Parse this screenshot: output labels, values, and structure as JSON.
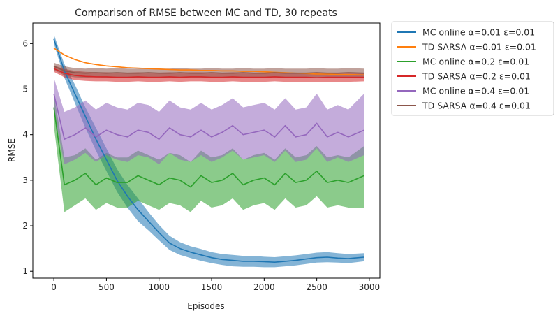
{
  "chart_data": {
    "type": "line",
    "title": "Comparison of RMSE between MC and TD, 30 repeats",
    "xlabel": "Episodes",
    "ylabel": "RMSE",
    "xlim": [
      -200,
      3100
    ],
    "ylim": [
      0.85,
      6.45
    ],
    "x_ticks": [
      0,
      500,
      1000,
      1500,
      2000,
      2500,
      3000
    ],
    "y_ticks": [
      1,
      2,
      3,
      4,
      5,
      6
    ],
    "grid": false,
    "legend_position": "outside-top-right",
    "x": [
      0,
      100,
      200,
      300,
      400,
      500,
      600,
      700,
      800,
      900,
      1000,
      1100,
      1200,
      1300,
      1400,
      1500,
      1600,
      1700,
      1800,
      1900,
      2000,
      2100,
      2200,
      2300,
      2400,
      2500,
      2600,
      2700,
      2800,
      2950
    ],
    "series": [
      {
        "name": "MC online α=0.01 ε=0.01",
        "color": "#1f77b4",
        "values": [
          6.1,
          5.4,
          4.9,
          4.4,
          3.9,
          3.45,
          3.0,
          2.65,
          2.35,
          2.1,
          1.85,
          1.62,
          1.5,
          1.42,
          1.36,
          1.3,
          1.26,
          1.24,
          1.22,
          1.22,
          1.21,
          1.2,
          1.22,
          1.24,
          1.27,
          1.3,
          1.31,
          1.29,
          1.28,
          1.31
        ],
        "lower": [
          6.0,
          5.25,
          4.7,
          4.15,
          3.65,
          3.2,
          2.75,
          2.4,
          2.1,
          1.9,
          1.68,
          1.47,
          1.36,
          1.29,
          1.23,
          1.18,
          1.14,
          1.11,
          1.1,
          1.1,
          1.09,
          1.09,
          1.11,
          1.13,
          1.16,
          1.19,
          1.2,
          1.19,
          1.18,
          1.22
        ],
        "upper": [
          6.2,
          5.55,
          5.1,
          4.6,
          4.15,
          3.7,
          3.25,
          2.9,
          2.6,
          2.3,
          2.02,
          1.78,
          1.64,
          1.55,
          1.49,
          1.42,
          1.38,
          1.36,
          1.34,
          1.34,
          1.32,
          1.31,
          1.33,
          1.35,
          1.38,
          1.41,
          1.42,
          1.4,
          1.38,
          1.4
        ]
      },
      {
        "name": "TD SARSA α=0.01 ε=0.01",
        "color": "#ff7f0e",
        "values": [
          5.9,
          5.75,
          5.65,
          5.58,
          5.54,
          5.51,
          5.49,
          5.47,
          5.46,
          5.45,
          5.44,
          5.43,
          5.42,
          5.42,
          5.41,
          5.41,
          5.4,
          5.4,
          5.39,
          5.39,
          5.38,
          5.37,
          5.36,
          5.35,
          5.34,
          5.33,
          5.33,
          5.32,
          5.32,
          5.31
        ],
        "lower": [
          5.89,
          5.74,
          5.64,
          5.57,
          5.53,
          5.5,
          5.48,
          5.46,
          5.45,
          5.44,
          5.43,
          5.42,
          5.41,
          5.41,
          5.4,
          5.4,
          5.39,
          5.39,
          5.38,
          5.38,
          5.37,
          5.36,
          5.35,
          5.34,
          5.33,
          5.32,
          5.32,
          5.31,
          5.31,
          5.3
        ],
        "upper": [
          5.91,
          5.76,
          5.66,
          5.59,
          5.55,
          5.52,
          5.5,
          5.48,
          5.47,
          5.46,
          5.45,
          5.44,
          5.43,
          5.43,
          5.42,
          5.42,
          5.41,
          5.41,
          5.4,
          5.4,
          5.39,
          5.38,
          5.37,
          5.36,
          5.35,
          5.34,
          5.34,
          5.33,
          5.33,
          5.32
        ]
      },
      {
        "name": "MC online α=0.2 ε=0.01",
        "color": "#2ca02c",
        "values": [
          4.6,
          2.9,
          3.0,
          3.15,
          2.9,
          3.05,
          2.95,
          2.95,
          3.1,
          3.0,
          2.9,
          3.05,
          3.0,
          2.85,
          3.1,
          2.95,
          3.0,
          3.15,
          2.9,
          3.0,
          3.05,
          2.9,
          3.15,
          2.95,
          3.0,
          3.2,
          2.95,
          3.0,
          2.95,
          3.1
        ],
        "lower": [
          4.2,
          2.3,
          2.45,
          2.6,
          2.35,
          2.5,
          2.4,
          2.4,
          2.55,
          2.45,
          2.35,
          2.5,
          2.45,
          2.3,
          2.55,
          2.4,
          2.45,
          2.6,
          2.35,
          2.45,
          2.5,
          2.35,
          2.6,
          2.4,
          2.45,
          2.65,
          2.4,
          2.45,
          2.4,
          2.4
        ],
        "upper": [
          4.9,
          3.5,
          3.55,
          3.7,
          3.45,
          3.6,
          3.5,
          3.5,
          3.65,
          3.55,
          3.45,
          3.6,
          3.55,
          3.4,
          3.65,
          3.5,
          3.55,
          3.7,
          3.45,
          3.55,
          3.6,
          3.45,
          3.7,
          3.5,
          3.55,
          3.75,
          3.5,
          3.55,
          3.5,
          3.75
        ]
      },
      {
        "name": "TD SARSA α=0.2 ε=0.01",
        "color": "#d62728",
        "values": [
          5.45,
          5.35,
          5.3,
          5.28,
          5.27,
          5.27,
          5.26,
          5.26,
          5.27,
          5.26,
          5.26,
          5.27,
          5.26,
          5.27,
          5.27,
          5.26,
          5.26,
          5.27,
          5.26,
          5.26,
          5.26,
          5.27,
          5.26,
          5.26,
          5.26,
          5.25,
          5.26,
          5.26,
          5.26,
          5.26
        ],
        "lower": [
          5.38,
          5.26,
          5.2,
          5.18,
          5.17,
          5.17,
          5.16,
          5.16,
          5.17,
          5.16,
          5.16,
          5.17,
          5.16,
          5.17,
          5.17,
          5.16,
          5.16,
          5.17,
          5.16,
          5.16,
          5.16,
          5.17,
          5.16,
          5.16,
          5.16,
          5.15,
          5.16,
          5.16,
          5.16,
          5.17
        ],
        "upper": [
          5.52,
          5.44,
          5.4,
          5.38,
          5.37,
          5.37,
          5.36,
          5.36,
          5.37,
          5.36,
          5.36,
          5.37,
          5.36,
          5.37,
          5.37,
          5.36,
          5.36,
          5.37,
          5.36,
          5.36,
          5.36,
          5.37,
          5.36,
          5.36,
          5.36,
          5.35,
          5.36,
          5.36,
          5.36,
          5.35
        ]
      },
      {
        "name": "MC online α=0.4 ε=0.01",
        "color": "#9467bd",
        "values": [
          4.9,
          3.9,
          4.0,
          4.15,
          3.95,
          4.1,
          4.0,
          3.95,
          4.1,
          4.05,
          3.9,
          4.15,
          4.0,
          3.95,
          4.1,
          3.95,
          4.05,
          4.2,
          4.0,
          4.05,
          4.1,
          3.95,
          4.2,
          3.95,
          4.0,
          4.25,
          3.95,
          4.05,
          3.95,
          4.1
        ],
        "lower": [
          4.5,
          3.35,
          3.45,
          3.6,
          3.4,
          3.55,
          3.45,
          3.4,
          3.55,
          3.5,
          3.35,
          3.6,
          3.45,
          3.4,
          3.55,
          3.4,
          3.5,
          3.65,
          3.45,
          3.5,
          3.55,
          3.4,
          3.65,
          3.4,
          3.45,
          3.7,
          3.4,
          3.5,
          3.4,
          3.55
        ],
        "upper": [
          5.25,
          4.5,
          4.6,
          4.75,
          4.55,
          4.7,
          4.6,
          4.55,
          4.7,
          4.65,
          4.5,
          4.75,
          4.6,
          4.55,
          4.7,
          4.55,
          4.65,
          4.8,
          4.6,
          4.65,
          4.7,
          4.55,
          4.8,
          4.55,
          4.6,
          4.9,
          4.55,
          4.65,
          4.55,
          4.9
        ]
      },
      {
        "name": "TD SARSA α=0.4 ε=0.01",
        "color": "#8c564b",
        "values": [
          5.5,
          5.4,
          5.36,
          5.35,
          5.36,
          5.35,
          5.36,
          5.35,
          5.35,
          5.36,
          5.35,
          5.35,
          5.36,
          5.35,
          5.35,
          5.36,
          5.35,
          5.35,
          5.36,
          5.35,
          5.35,
          5.36,
          5.35,
          5.35,
          5.35,
          5.36,
          5.35,
          5.35,
          5.36,
          5.35
        ],
        "lower": [
          5.42,
          5.3,
          5.26,
          5.25,
          5.26,
          5.25,
          5.26,
          5.25,
          5.25,
          5.26,
          5.25,
          5.25,
          5.26,
          5.25,
          5.25,
          5.26,
          5.25,
          5.25,
          5.26,
          5.25,
          5.25,
          5.26,
          5.25,
          5.25,
          5.25,
          5.26,
          5.25,
          5.25,
          5.26,
          5.25
        ],
        "upper": [
          5.58,
          5.5,
          5.46,
          5.45,
          5.46,
          5.45,
          5.46,
          5.45,
          5.45,
          5.46,
          5.45,
          5.45,
          5.46,
          5.45,
          5.45,
          5.46,
          5.45,
          5.45,
          5.46,
          5.45,
          5.45,
          5.46,
          5.45,
          5.45,
          5.45,
          5.46,
          5.45,
          5.45,
          5.46,
          5.45
        ]
      }
    ]
  }
}
